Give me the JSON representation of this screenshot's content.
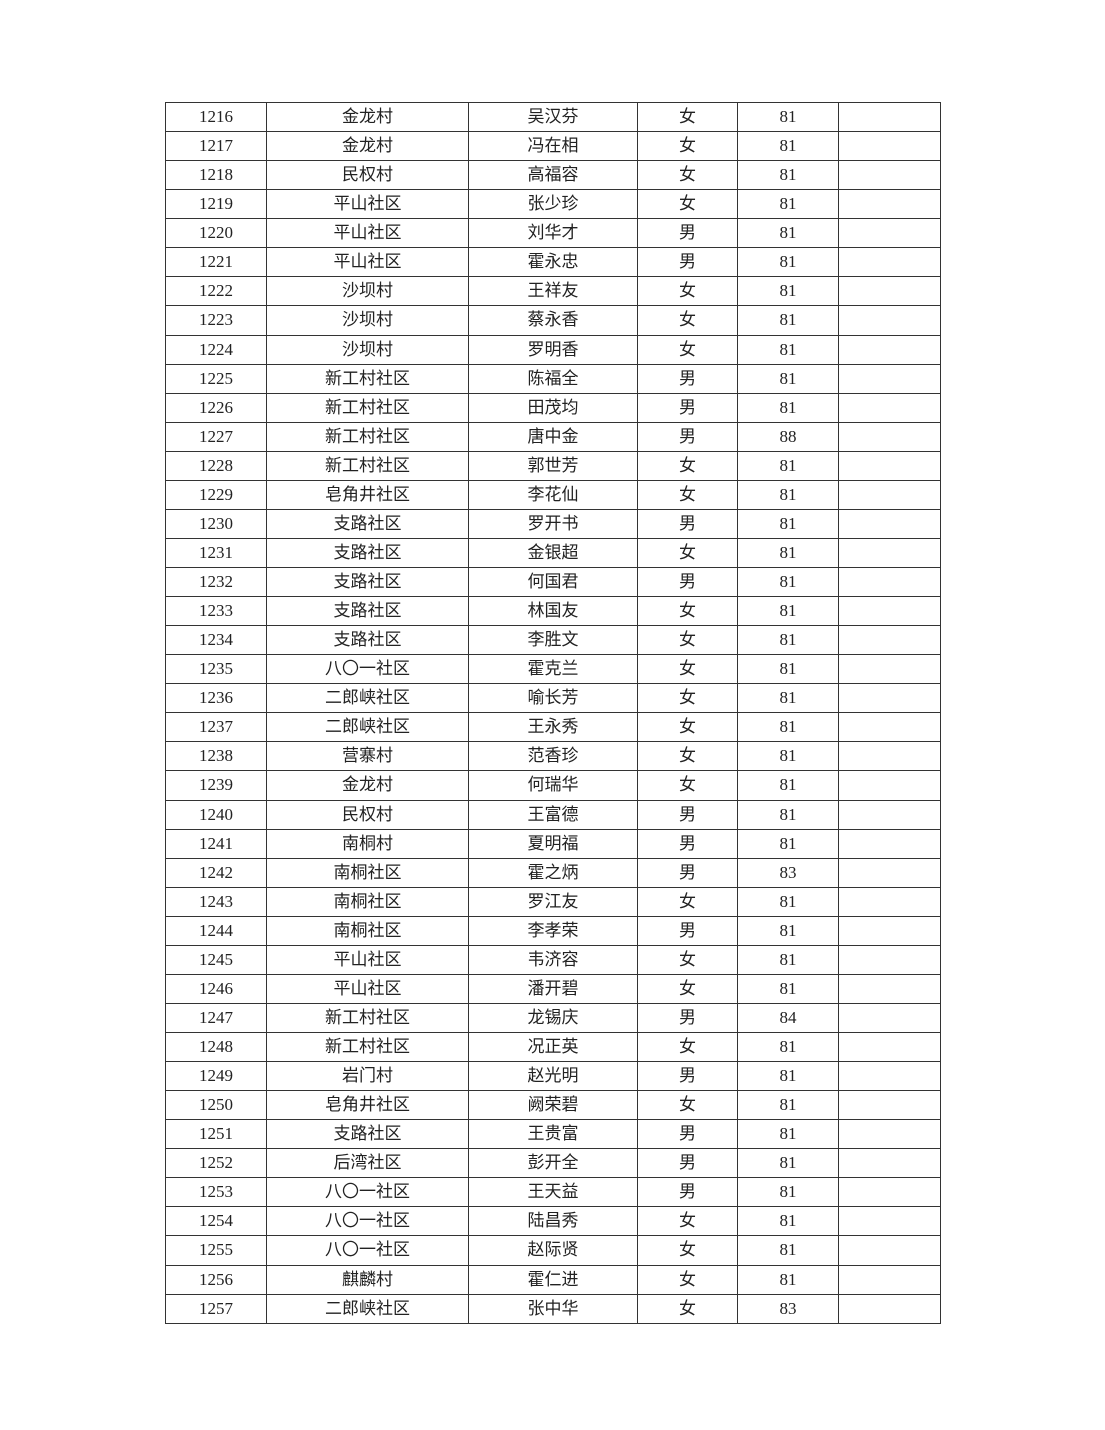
{
  "table": {
    "rows": [
      [
        "1216",
        "金龙村",
        "吴汉芬",
        "女",
        "81",
        ""
      ],
      [
        "1217",
        "金龙村",
        "冯在相",
        "女",
        "81",
        ""
      ],
      [
        "1218",
        "民权村",
        "高福容",
        "女",
        "81",
        ""
      ],
      [
        "1219",
        "平山社区",
        "张少珍",
        "女",
        "81",
        ""
      ],
      [
        "1220",
        "平山社区",
        "刘华才",
        "男",
        "81",
        ""
      ],
      [
        "1221",
        "平山社区",
        "霍永忠",
        "男",
        "81",
        ""
      ],
      [
        "1222",
        "沙坝村",
        "王祥友",
        "女",
        "81",
        ""
      ],
      [
        "1223",
        "沙坝村",
        "蔡永香",
        "女",
        "81",
        ""
      ],
      [
        "1224",
        "沙坝村",
        "罗明香",
        "女",
        "81",
        ""
      ],
      [
        "1225",
        "新工村社区",
        "陈福全",
        "男",
        "81",
        ""
      ],
      [
        "1226",
        "新工村社区",
        "田茂均",
        "男",
        "81",
        ""
      ],
      [
        "1227",
        "新工村社区",
        "唐中金",
        "男",
        "88",
        ""
      ],
      [
        "1228",
        "新工村社区",
        "郭世芳",
        "女",
        "81",
        ""
      ],
      [
        "1229",
        "皂角井社区",
        "李花仙",
        "女",
        "81",
        ""
      ],
      [
        "1230",
        "支路社区",
        "罗开书",
        "男",
        "81",
        ""
      ],
      [
        "1231",
        "支路社区",
        "金银超",
        "女",
        "81",
        ""
      ],
      [
        "1232",
        "支路社区",
        "何国君",
        "男",
        "81",
        ""
      ],
      [
        "1233",
        "支路社区",
        "林国友",
        "女",
        "81",
        ""
      ],
      [
        "1234",
        "支路社区",
        "李胜文",
        "女",
        "81",
        ""
      ],
      [
        "1235",
        "八〇一社区",
        "霍克兰",
        "女",
        "81",
        ""
      ],
      [
        "1236",
        "二郎峡社区",
        "喻长芳",
        "女",
        "81",
        ""
      ],
      [
        "1237",
        "二郎峡社区",
        "王永秀",
        "女",
        "81",
        ""
      ],
      [
        "1238",
        "营寨村",
        "范香珍",
        "女",
        "81",
        ""
      ],
      [
        "1239",
        "金龙村",
        "何瑞华",
        "女",
        "81",
        ""
      ],
      [
        "1240",
        "民权村",
        "王富德",
        "男",
        "81",
        ""
      ],
      [
        "1241",
        "南桐村",
        "夏明福",
        "男",
        "81",
        ""
      ],
      [
        "1242",
        "南桐社区",
        "霍之炳",
        "男",
        "83",
        ""
      ],
      [
        "1243",
        "南桐社区",
        "罗江友",
        "女",
        "81",
        ""
      ],
      [
        "1244",
        "南桐社区",
        "李孝荣",
        "男",
        "81",
        ""
      ],
      [
        "1245",
        "平山社区",
        "韦济容",
        "女",
        "81",
        ""
      ],
      [
        "1246",
        "平山社区",
        "潘开碧",
        "女",
        "81",
        ""
      ],
      [
        "1247",
        "新工村社区",
        "龙锡庆",
        "男",
        "84",
        ""
      ],
      [
        "1248",
        "新工村社区",
        "况正英",
        "女",
        "81",
        ""
      ],
      [
        "1249",
        "岩门村",
        "赵光明",
        "男",
        "81",
        ""
      ],
      [
        "1250",
        "皂角井社区",
        "阙荣碧",
        "女",
        "81",
        ""
      ],
      [
        "1251",
        "支路社区",
        "王贵富",
        "男",
        "81",
        ""
      ],
      [
        "1252",
        "后湾社区",
        "彭开全",
        "男",
        "81",
        ""
      ],
      [
        "1253",
        "八〇一社区",
        "王天益",
        "男",
        "81",
        ""
      ],
      [
        "1254",
        "八〇一社区",
        "陆昌秀",
        "女",
        "81",
        ""
      ],
      [
        "1255",
        "八〇一社区",
        "赵际贤",
        "女",
        "81",
        ""
      ],
      [
        "1256",
        "麒麟村",
        "霍仁进",
        "女",
        "81",
        ""
      ],
      [
        "1257",
        "二郎峡社区",
        "张中华",
        "女",
        "83",
        ""
      ]
    ]
  }
}
